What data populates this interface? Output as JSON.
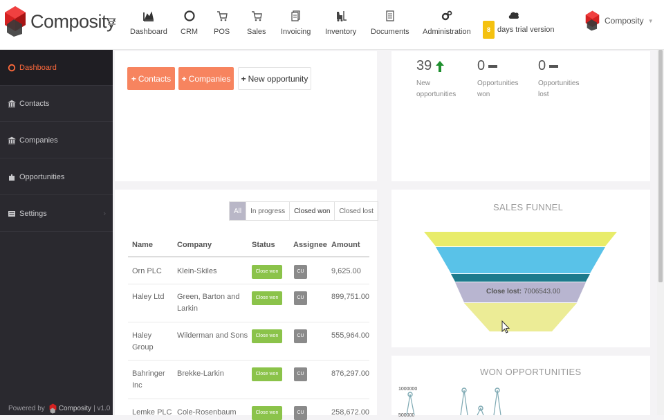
{
  "app": {
    "name": "Composity"
  },
  "nav": [
    {
      "label": "Dashboard",
      "icon": "area-chart-icon"
    },
    {
      "label": "CRM",
      "icon": "circle-icon"
    },
    {
      "label": "POS",
      "icon": "cart-icon"
    },
    {
      "label": "Sales",
      "icon": "cart-icon"
    },
    {
      "label": "Invoicing",
      "icon": "documents-icon"
    },
    {
      "label": "Inventory",
      "icon": "forklift-icon"
    },
    {
      "label": "Documents",
      "icon": "file-icon"
    },
    {
      "label": "Administration",
      "icon": "gears-icon"
    }
  ],
  "trial": {
    "days": "8",
    "text": "days trial version"
  },
  "user": {
    "name": "Composity"
  },
  "sidebar": {
    "items": [
      {
        "label": "Dashboard",
        "icon": "dashboard-icon"
      },
      {
        "label": "Contacts",
        "icon": "bank-icon"
      },
      {
        "label": "Companies",
        "icon": "bank-icon"
      },
      {
        "label": "Opportunities",
        "icon": "puzzle-icon"
      },
      {
        "label": "Settings",
        "icon": "settings-icon"
      }
    ],
    "powered_prefix": "Powered by",
    "powered_brand": "Composity",
    "version": "| v1.0"
  },
  "actions": {
    "contacts": "Contacts",
    "companies": "Companies",
    "new_opportunity": "New opportunity"
  },
  "stats": [
    {
      "value": "39",
      "line1": "New",
      "line2": "opportunities",
      "trend": "up"
    },
    {
      "value": "0",
      "line1": "Opportunities",
      "line2": "won",
      "trend": "flat"
    },
    {
      "value": "0",
      "line1": "Opportunities",
      "line2": "lost",
      "trend": "flat"
    }
  ],
  "filters": [
    "All",
    "In progress",
    "Closed won",
    "Closed lost"
  ],
  "table": {
    "headers": [
      "Name",
      "Company",
      "Status",
      "Assignee",
      "Amount"
    ],
    "rows": [
      {
        "name": "Orn PLC",
        "company": "Klein-Skiles",
        "status": "Close won",
        "assignee": "CU",
        "amount": "9,625.00"
      },
      {
        "name": "Haley Ltd",
        "company": "Green, Barton and Larkin",
        "status": "Close won",
        "assignee": "CU",
        "amount": "899,751.00"
      },
      {
        "name": "Haley Group",
        "company": "Wilderman and Sons",
        "status": "Close won",
        "assignee": "CU",
        "amount": "555,964.00"
      },
      {
        "name": "Bahringer Inc",
        "company": "Brekke-Larkin",
        "status": "Close won",
        "assignee": "CU",
        "amount": "876,297.00"
      },
      {
        "name": "Lemke PLC",
        "company": "Cole-Rosenbaum",
        "status": "Close won",
        "assignee": "CU",
        "amount": "258,672.00"
      }
    ]
  },
  "funnel": {
    "title": "SALES FUNNEL",
    "label_key": "Close lost:",
    "label_value": "7006543.00",
    "colors": [
      "#e8ec6a",
      "#59c2e8",
      "#1c7a8c",
      "#b8b5d0",
      "#ecec96"
    ]
  },
  "won": {
    "title": "WON OPPORTUNITIES",
    "ticks": [
      "1000000",
      "500000"
    ]
  }
}
